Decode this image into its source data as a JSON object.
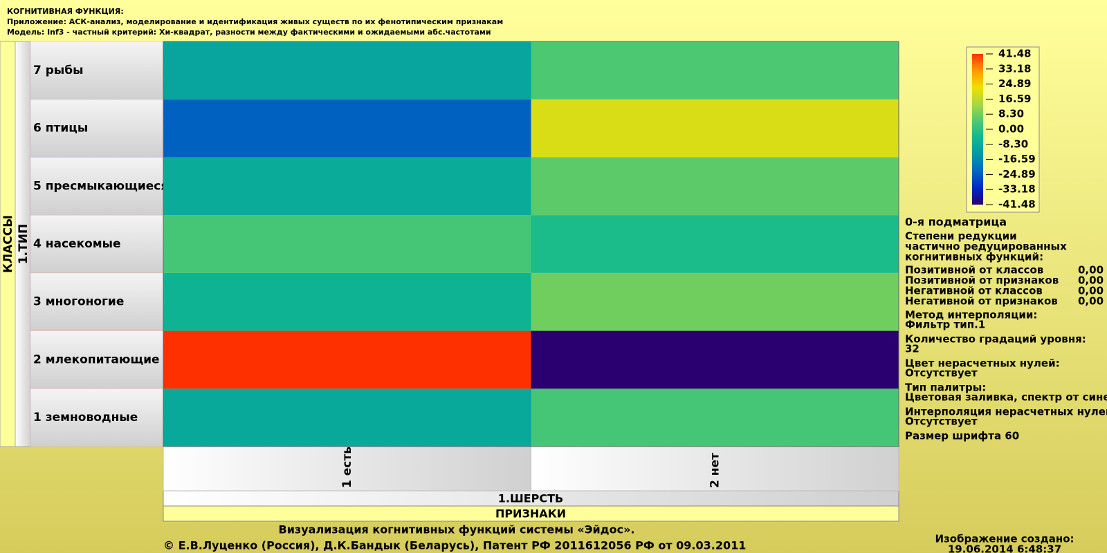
{
  "header": {
    "lines": [
      "КОГНИТИВНАЯ ФУНКЦИЯ:",
      "Приложение: АСК-анализ, моделирование и идентификация живых существ по их фенотипическим признакам",
      "Модель: Inf3 - частный критерий: Хи-квадрат, разности между фактическими и ожидаемыми абс.частотами"
    ]
  },
  "chart_data": {
    "type": "heatmap",
    "x": [
      "1 есть",
      "2 нет"
    ],
    "y": [
      "1 земноводные",
      "2 млекопитающие",
      "3 многоногие",
      "4 насекомые",
      "5 пресмыкающиеся",
      "6 птицы",
      "7 рыбы"
    ],
    "values": [
      [
        -9,
        3
      ],
      [
        41.48,
        -41.48
      ],
      [
        -6,
        8
      ],
      [
        3,
        -3
      ],
      [
        -8,
        6
      ],
      [
        -24,
        20
      ],
      [
        -10,
        4
      ]
    ],
    "xlabel": "1.ШЕРСТЬ",
    "xlabel2": "ПРИЗНАКИ",
    "ylabel": "1.ТИП",
    "ylabel2": "КЛАССЫ",
    "clim": [
      -41.48,
      41.48
    ],
    "cticks": [
      -41.48,
      -33.18,
      -24.89,
      -16.59,
      {
        "value": -8.3,
        "label": "-8.30"
      },
      {
        "value": 0,
        "label": "0.00"
      },
      {
        "value": 8.3,
        "label": "8.30"
      },
      16.59,
      24.89,
      33.18,
      41.48
    ],
    "colors": [
      "#2a0070",
      "#0028c8",
      "#0068c0",
      "#0098a8",
      "#10b890",
      "#50c870",
      "#a8d840",
      "#f0e000",
      "#ff9800",
      "#ff3000"
    ]
  },
  "panel": {
    "lines": [
      "0-я подматрица",
      "Степени редукции",
      "частично редуцированных",
      "когнитивных функций:"
    ],
    "rows": [
      [
        "Позитивной от классов",
        "0,00"
      ],
      [
        "Позитивной от признаков",
        "0,00"
      ],
      [
        "Негативной от классов",
        "0,00"
      ],
      [
        "Негативной от признаков",
        "0,00"
      ]
    ],
    "settings": [
      "Метод интерполяции:",
      "Фильтр тип.1",
      "Количество градаций уровня:",
      "32",
      "Цвет нерасчетных нулей:",
      "Отсутствует",
      "Тип палитры:",
      "Цветовая заливка, спектр от синего к красному",
      "Интерполяция нерасчетных нулей:",
      "Отсутствует",
      "Размер шрифта 60"
    ]
  },
  "footer": {
    "lines": [
      "Визуализация когнитивных функций системы «Эйдос».",
      "© Е.В.Луценко (Россия), Д.К.Бандык (Беларусь), Патент РФ  2011612056 РФ от 09.03.2011"
    ],
    "created": [
      "Изображение создано:",
      "19.06.2014  6:48:37"
    ]
  }
}
